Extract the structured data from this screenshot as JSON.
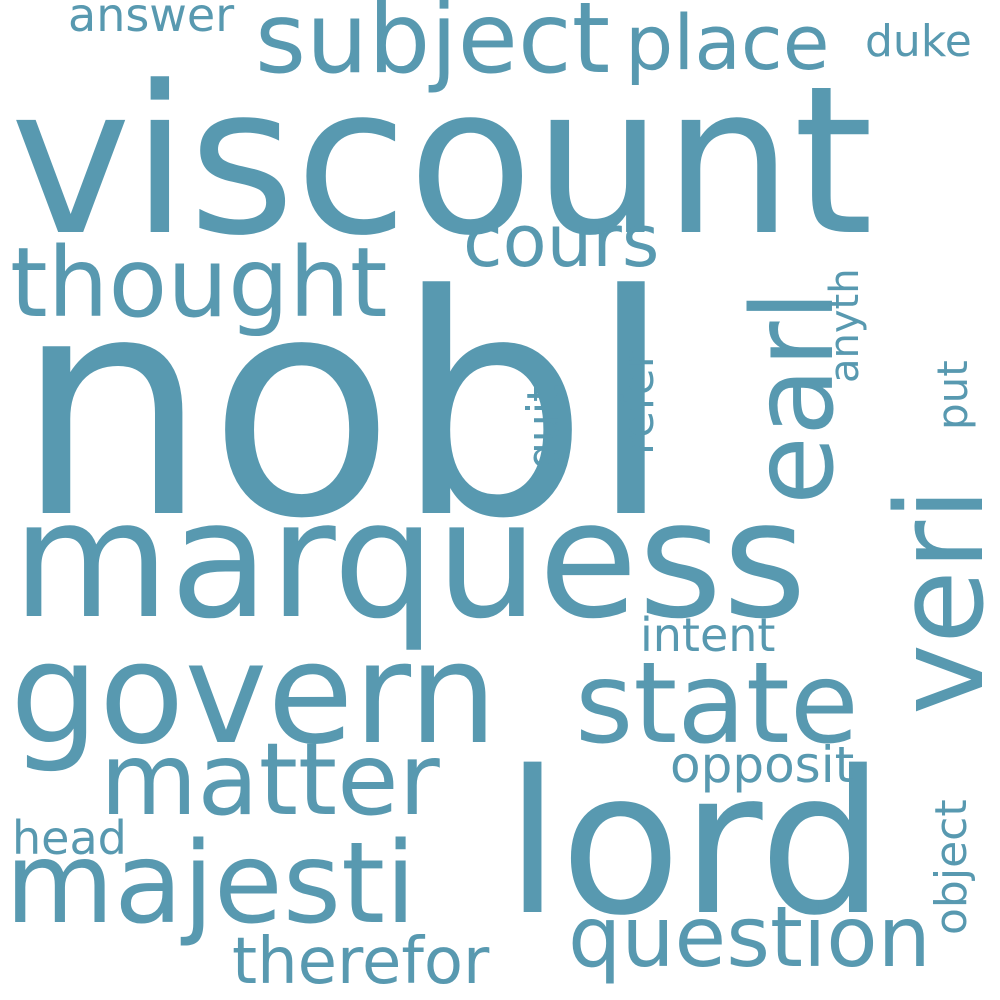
{
  "cloud": {
    "color": "#5899b0",
    "words": [
      {
        "text": "viscount"
      },
      {
        "text": "nobl"
      },
      {
        "text": "marquess"
      },
      {
        "text": "lord"
      },
      {
        "text": "govern"
      },
      {
        "text": "veri"
      },
      {
        "text": "earl"
      },
      {
        "text": "state"
      },
      {
        "text": "majesti"
      },
      {
        "text": "subject"
      },
      {
        "text": "thought"
      },
      {
        "text": "matter"
      },
      {
        "text": "question"
      },
      {
        "text": "place"
      },
      {
        "text": "cours"
      },
      {
        "text": "therefor"
      },
      {
        "text": "answer"
      },
      {
        "text": "duke"
      },
      {
        "text": "opposit"
      },
      {
        "text": "intent"
      },
      {
        "text": "object"
      },
      {
        "text": "head"
      },
      {
        "text": "anyth"
      },
      {
        "text": "refer"
      },
      {
        "text": "quit"
      },
      {
        "text": "put"
      }
    ]
  }
}
